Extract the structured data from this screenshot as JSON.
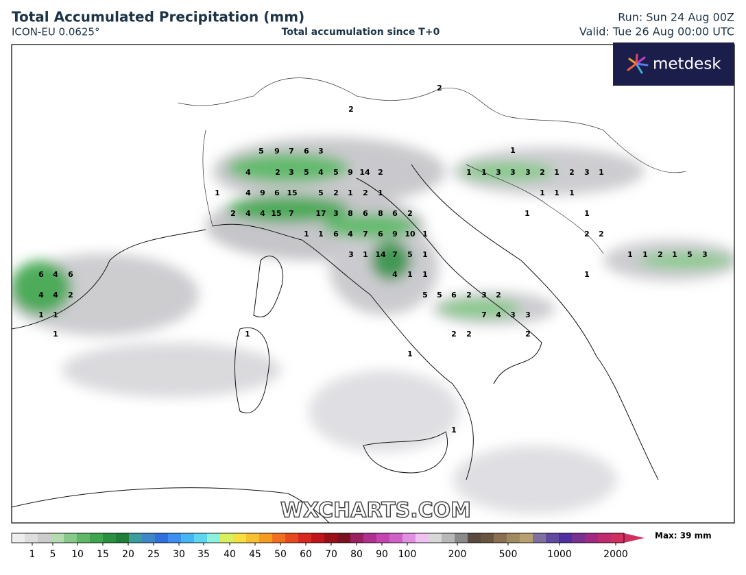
{
  "header": {
    "title": "Total Accumulated Precipitation (mm)",
    "model": "ICON-EU 0.0625°",
    "subtitle": "Total accumulation since T+0",
    "run": "Run: Sun 24 Aug 00Z",
    "valid": "Valid: Tue 26 Aug 00:00 UTC"
  },
  "logo": "metdesk",
  "watermark": "WXCHARTS.COM",
  "map": {
    "labels": [
      2,
      2,
      5,
      9,
      7,
      6,
      3,
      1,
      4,
      2,
      3,
      5,
      4,
      5,
      9,
      14,
      2,
      1,
      1,
      3,
      3,
      3,
      2,
      1,
      2,
      3,
      1,
      1,
      4,
      9,
      6,
      15,
      5,
      2,
      1,
      2,
      1,
      1,
      1,
      1,
      2,
      4,
      4,
      15,
      7,
      17,
      3,
      8,
      6,
      8,
      6,
      2,
      1,
      1,
      1,
      1,
      6,
      4,
      7,
      6,
      9,
      10,
      1,
      2,
      2,
      3,
      1,
      14,
      7,
      5,
      1,
      1,
      1,
      2,
      1,
      5,
      3,
      6,
      4,
      6,
      4,
      1,
      1,
      1,
      4,
      4,
      2,
      5,
      5,
      6,
      2,
      3,
      2,
      1,
      1,
      7,
      4,
      3,
      3,
      1,
      1,
      2,
      2,
      2,
      1,
      1
    ]
  },
  "colorbar": {
    "ticks": [
      1,
      5,
      10,
      15,
      20,
      25,
      30,
      35,
      40,
      45,
      50,
      60,
      70,
      80,
      90,
      100,
      200,
      500,
      1000,
      2000
    ],
    "max_label": "Max: 39 mm"
  }
}
